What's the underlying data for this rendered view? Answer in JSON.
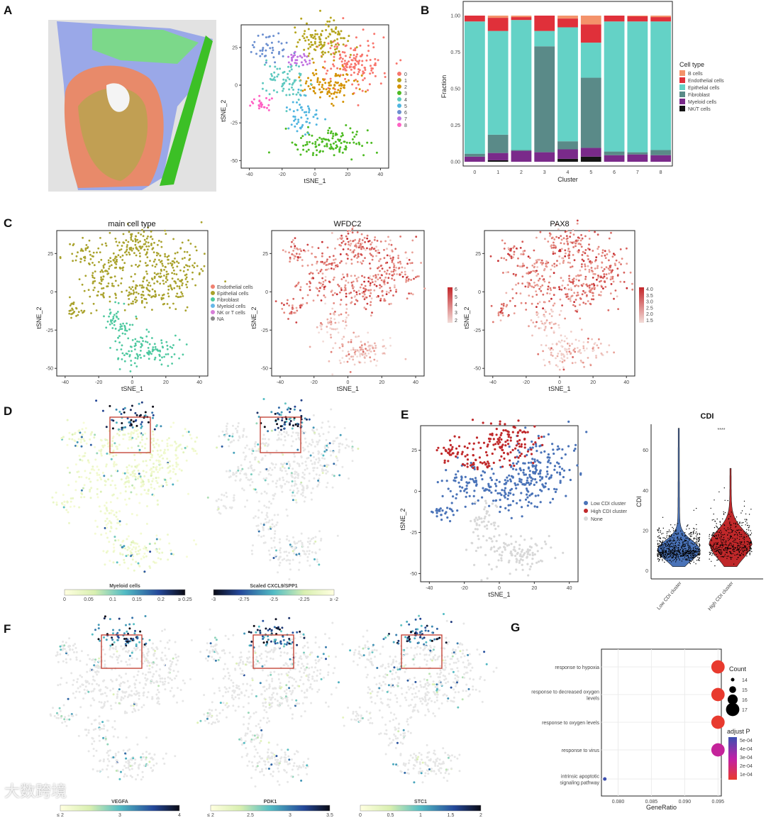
{
  "panel_labels": {
    "A": "A",
    "B": "B",
    "C": "C",
    "D": "D",
    "E": "E",
    "F": "F",
    "G": "G"
  },
  "watermark": "大数跨境",
  "chart_data": [
    {
      "id": "A_tsne",
      "type": "scatter",
      "xlabel": "tSNE_1",
      "ylabel": "tSNE_2",
      "xticks": [
        "-40",
        "-20",
        "0",
        "20",
        "40"
      ],
      "yticks": [
        "25",
        "0",
        "-25",
        "-50"
      ],
      "xlim": [
        -45,
        45
      ],
      "ylim": [
        -55,
        40
      ],
      "legend": [
        "0",
        "1",
        "2",
        "3",
        "4",
        "5",
        "6",
        "7",
        "8"
      ],
      "colors": [
        "#F8766D",
        "#B5A51E",
        "#D39200",
        "#4DBB22",
        "#5FC9C0",
        "#4FB5E0",
        "#6B8FD0",
        "#C070E0",
        "#FF61C3"
      ]
    },
    {
      "id": "B_fraction",
      "type": "bar",
      "stacked": true,
      "title": "",
      "xlabel": "Cluster",
      "ylabel": "Fraction",
      "ylim": [
        0,
        1
      ],
      "yticks": [
        "0.00",
        "0.25",
        "0.50",
        "0.75",
        "1.00"
      ],
      "categories": [
        "0",
        "1",
        "2",
        "3",
        "4",
        "5",
        "6",
        "7",
        "8"
      ],
      "legend_title": "Cell type",
      "series": [
        {
          "name": "NK/T cells",
          "color": "#151515",
          "values": [
            0,
            0.01,
            0,
            0,
            0.02,
            0.035,
            0,
            0,
            0
          ]
        },
        {
          "name": "Myeloid cells",
          "color": "#7A2A8A",
          "values": [
            0.035,
            0.05,
            0.075,
            0.065,
            0.065,
            0.06,
            0.045,
            0.05,
            0.045
          ]
        },
        {
          "name": "Fibroblast",
          "color": "#5A8A88",
          "values": [
            0.02,
            0.125,
            0.005,
            0.725,
            0.055,
            0.48,
            0.025,
            0.015,
            0.035
          ]
        },
        {
          "name": "Epithelial cells",
          "color": "#64D2C6",
          "values": [
            0.905,
            0.71,
            0.89,
            0.105,
            0.78,
            0.24,
            0.89,
            0.895,
            0.88
          ]
        },
        {
          "name": "Endothelial cells",
          "color": "#E0303A",
          "values": [
            0.04,
            0.09,
            0.02,
            0.105,
            0.06,
            0.125,
            0.04,
            0.035,
            0.03
          ]
        },
        {
          "name": "B cells",
          "color": "#F4926A",
          "values": [
            0,
            0.015,
            0.01,
            0,
            0.02,
            0.06,
            0,
            0.005,
            0.01
          ]
        }
      ],
      "legend_order": [
        "B cells",
        "Endothelial cells",
        "Epithelial cells",
        "Fibroblast",
        "Myeloid cells",
        "NK/T cells"
      ]
    },
    {
      "id": "C_main",
      "type": "scatter",
      "title": "main cell type",
      "xlabel": "tSNE_1",
      "ylabel": "tSNE_2",
      "xticks": [
        "-40",
        "-20",
        "0",
        "20",
        "40"
      ],
      "yticks": [
        "25",
        "0",
        "-25",
        "-50"
      ],
      "legend": [
        "Endothelial cells",
        "Epithelial cells",
        "Fibroblast",
        "Myeloid cells",
        "NK or T cells",
        "NA"
      ],
      "legend_colors": [
        "#F08070",
        "#A9A22C",
        "#4EC9A0",
        "#66B8E8",
        "#D77FD8",
        "#8A8A8A"
      ]
    },
    {
      "id": "C_WFDC2",
      "type": "scatter",
      "title": "WFDC2",
      "xlabel": "tSNE_1",
      "ylabel": "tSNE_2",
      "xticks": [
        "-40",
        "-20",
        "0",
        "20",
        "40"
      ],
      "yticks": [
        "25",
        "0",
        "-25",
        "-50"
      ],
      "colorbar_ticks": [
        "6",
        "5",
        "4",
        "3",
        "2"
      ]
    },
    {
      "id": "C_PAX8",
      "type": "scatter",
      "title": "PAX8",
      "xlabel": "tSNE_1",
      "ylabel": "tSNE_2",
      "xticks": [
        "-40",
        "-20",
        "0",
        "20",
        "40"
      ],
      "yticks": [
        "25",
        "0",
        "-25",
        "-50"
      ],
      "colorbar_ticks": [
        "4.0",
        "3.5",
        "3.0",
        "2.5",
        "2.0",
        "1.5"
      ]
    },
    {
      "id": "D_myeloid",
      "type": "scatter",
      "colorbar_title": "Myeloid cells",
      "colorbar_ticks": [
        "0",
        "0.05",
        "0.1",
        "0.15",
        "0.2",
        "≥ 0.25"
      ]
    },
    {
      "id": "D_cxcl9",
      "type": "scatter",
      "colorbar_title": "Scaled CXCL9/SPP1",
      "colorbar_ticks": [
        "-3",
        "-2.75",
        "-2.5",
        "-2.25",
        "≥ -2"
      ]
    },
    {
      "id": "E_tsne",
      "type": "scatter",
      "xlabel": "tSNE_1",
      "ylabel": "tSNE_2",
      "xticks": [
        "-40",
        "-20",
        "0",
        "20",
        "40"
      ],
      "yticks": [
        "25",
        "0",
        "-25",
        "-50"
      ],
      "legend": [
        "Low CDI cluster",
        "High CDI cluster",
        "None"
      ],
      "legend_colors": [
        "#4A73B8",
        "#C0282A",
        "#D8D8D8"
      ]
    },
    {
      "id": "E_violin",
      "type": "violin",
      "title": "CDI",
      "ylabel": "CDI",
      "categories": [
        "Low CDI cluster",
        "High CDI cluster"
      ],
      "colors": [
        "#4A73B8",
        "#C0282A"
      ],
      "yticks": [
        "0",
        "20",
        "40",
        "60"
      ],
      "ylim": [
        -2,
        73
      ],
      "medians": [
        10,
        13
      ],
      "max": [
        71,
        51
      ],
      "significance": "****"
    },
    {
      "id": "F_VEGFA",
      "type": "scatter",
      "colorbar_title": "VEGFA",
      "colorbar_ticks": [
        "≤ 2",
        "3",
        "4"
      ]
    },
    {
      "id": "F_PDK1",
      "type": "scatter",
      "colorbar_title": "PDK1",
      "colorbar_ticks": [
        "≤ 2",
        "2.5",
        "3",
        "3.5"
      ]
    },
    {
      "id": "F_STC1",
      "type": "scatter",
      "colorbar_title": "STC1",
      "colorbar_ticks": [
        "0",
        "0.5",
        "1",
        "1.5",
        "2"
      ]
    },
    {
      "id": "G_go",
      "type": "scatter",
      "xlabel": "GeneRatio",
      "xlim": [
        0.0775,
        0.0955
      ],
      "xticks": [
        "0.080",
        "0.085",
        "0.090",
        "0.095"
      ],
      "terms": [
        "response to hypoxia",
        "response to decreased oxygen levels",
        "response to oxygen levels",
        "response to virus",
        "intrinsic apoptotic signaling pathway"
      ],
      "term_lines": [
        [
          "response to hypoxia"
        ],
        [
          "response to decreased oxygen",
          "levels"
        ],
        [
          "response to oxygen levels"
        ],
        [
          "response to virus"
        ],
        [
          "intrinsic apoptotic",
          "signaling pathway"
        ]
      ],
      "gene_ratio": [
        0.095,
        0.095,
        0.095,
        0.095,
        0.078
      ],
      "count": [
        17,
        17,
        17,
        17,
        14
      ],
      "p_adjust": [
        5e-05,
        5e-05,
        5e-05,
        0.00025,
        0.0005
      ],
      "size_legend_title": "Count",
      "size_legend": [
        "14",
        "15",
        "16",
        "17"
      ],
      "color_legend_title": "adjust P",
      "color_legend": [
        "5e-04",
        "4e-04",
        "3e-04",
        "2e-04",
        "1e-04"
      ]
    }
  ]
}
